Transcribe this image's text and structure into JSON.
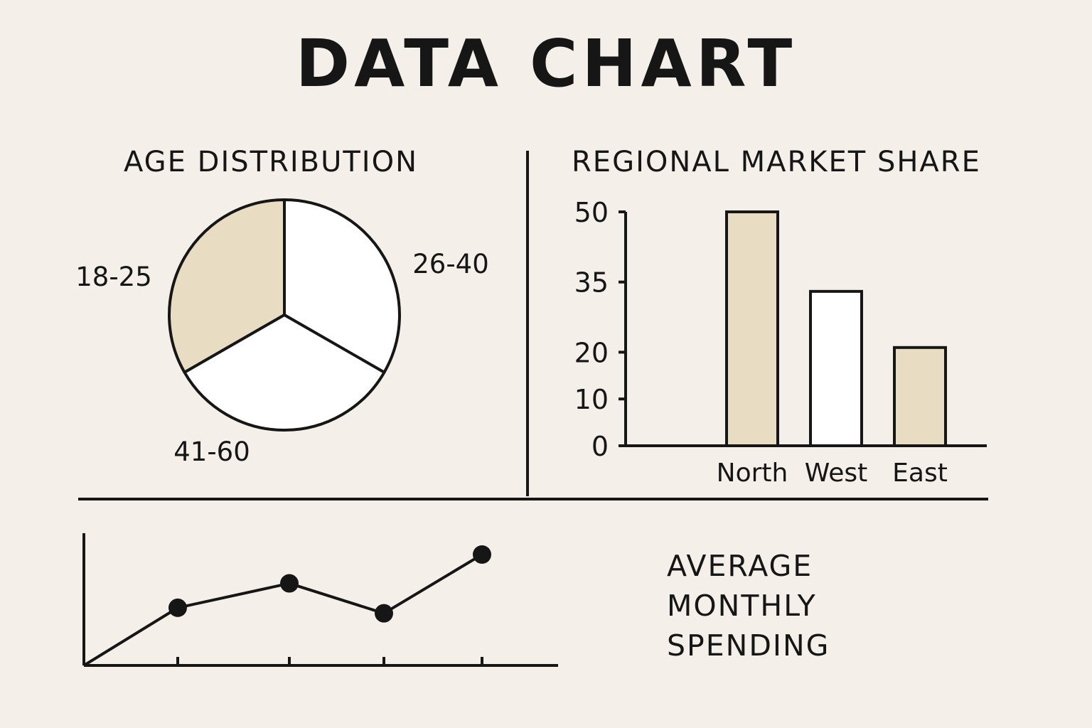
{
  "title": "DATA CHART",
  "colors": {
    "background": "#f4f0e9",
    "ink": "#161616",
    "accent_fill": "#e8dcc2",
    "plain_fill": "#ffffff"
  },
  "chart_data": [
    {
      "type": "pie",
      "title": "AGE DISTRIBUTION",
      "categories": [
        "18-25",
        "26-40",
        "41-60"
      ],
      "values": [
        33.3,
        33.3,
        33.4
      ],
      "fills": [
        "#e8dcc2",
        "#ffffff",
        "#ffffff"
      ],
      "label_placement": "outside"
    },
    {
      "type": "bar",
      "title": "REGIONAL MARKET SHARE",
      "categories": [
        "North",
        "West",
        "East"
      ],
      "values": [
        50,
        33,
        21
      ],
      "fills": [
        "#e8dcc2",
        "#ffffff",
        "#e8dcc2"
      ],
      "yticks": [
        0,
        10,
        20,
        35,
        50
      ],
      "ylim": [
        0,
        50
      ],
      "xlabel": "",
      "ylabel": "",
      "grid": false
    },
    {
      "type": "line",
      "title_lines": [
        "AVERAGE",
        "MONTHLY",
        "SPENDING"
      ],
      "x": [
        0,
        1,
        2,
        3,
        4
      ],
      "values": [
        0,
        52,
        74,
        47,
        100
      ],
      "markers": [
        false,
        true,
        true,
        true,
        true
      ],
      "ylim": [
        0,
        100
      ],
      "xlabel": "",
      "ylabel": "",
      "grid": false
    }
  ]
}
